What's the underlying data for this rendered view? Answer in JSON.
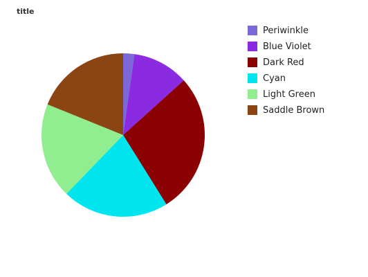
{
  "chart_data": {
    "type": "pie",
    "title": "title",
    "slices": [
      {
        "label": "Periwinkle",
        "value": 2.0,
        "color": "#7b68d6"
      },
      {
        "label": "Blue Violet",
        "value": 10.0,
        "color": "#8a2be2"
      },
      {
        "label": "Dark Red",
        "value": 25.0,
        "color": "#8b0000"
      },
      {
        "label": "Cyan",
        "value": 19.0,
        "color": "#00e5ee"
      },
      {
        "label": "Light Green",
        "value": 17.0,
        "color": "#90ee90"
      },
      {
        "label": "Saddle Brown",
        "value": 17.0,
        "color": "#8b4513"
      }
    ],
    "legend_position": "right"
  }
}
